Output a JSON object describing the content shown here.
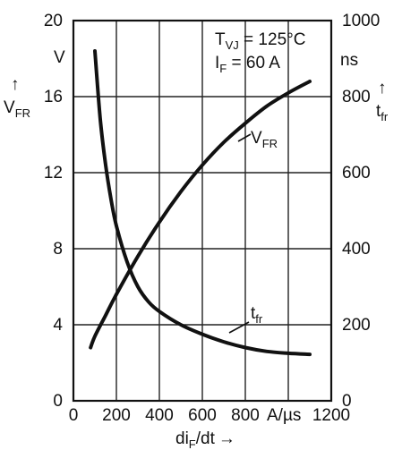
{
  "chart_data": {
    "type": "line",
    "x_axis": {
      "range": [
        0,
        1200
      ],
      "ticks": [
        "0",
        "200",
        "400",
        "600",
        "800",
        "1200"
      ],
      "tick_values": [
        0,
        200,
        400,
        600,
        800,
        1200
      ],
      "unit": "A/µs",
      "label_main": "di",
      "label_sub": "F",
      "label_tail": "/dt",
      "arrow": "→"
    },
    "y_left": {
      "range": [
        0,
        20
      ],
      "ticks": [
        "0",
        "4",
        "8",
        "12",
        "16",
        "20"
      ],
      "tick_values": [
        0,
        4,
        8,
        12,
        16,
        20
      ],
      "unit": "V",
      "label_main": "V",
      "label_sub": "FR",
      "arrow": "↑"
    },
    "y_right": {
      "range": [
        0,
        1000
      ],
      "ticks": [
        "0",
        "200",
        "400",
        "600",
        "800",
        "1000"
      ],
      "tick_values": [
        0,
        200,
        400,
        600,
        800,
        1000
      ],
      "unit": "ns",
      "label_main": "t",
      "label_sub": "fr",
      "arrow": "↑"
    },
    "conditions": {
      "line1": {
        "main": "T",
        "sub": "VJ",
        "tail": " = 125°C"
      },
      "line2": {
        "main": "I",
        "sub": "F",
        "tail": " =  60  A"
      }
    },
    "grid": true,
    "series": [
      {
        "name_main": "V",
        "name_sub": "FR",
        "axis": "left",
        "x": [
          80,
          100,
          150,
          200,
          300,
          400,
          500,
          600,
          700,
          800,
          900,
          1000,
          1100
        ],
        "y": [
          2.8,
          3.4,
          4.5,
          5.6,
          7.6,
          9.4,
          11.0,
          12.4,
          13.6,
          14.6,
          15.5,
          16.2,
          16.8
        ]
      },
      {
        "name_main": "t",
        "name_sub": "fr",
        "axis": "right",
        "x": [
          100,
          125,
          150,
          175,
          200,
          250,
          300,
          350,
          400,
          500,
          600,
          700,
          800,
          900,
          1000,
          1100
        ],
        "y": [
          920,
          740,
          620,
          530,
          460,
          365,
          300,
          260,
          235,
          200,
          175,
          155,
          140,
          130,
          125,
          122
        ]
      }
    ]
  }
}
